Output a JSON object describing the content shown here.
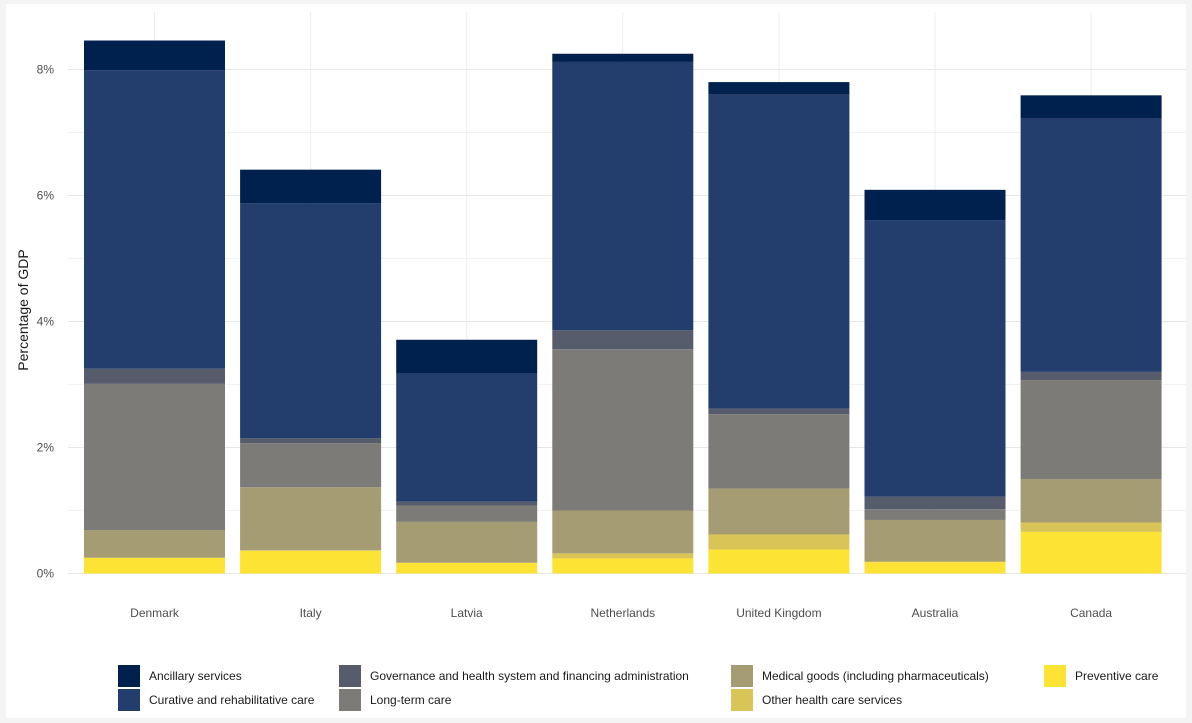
{
  "chart_data": {
    "type": "bar",
    "stacked": true,
    "title": "",
    "xlabel": "",
    "ylabel": "Percentage of GDP",
    "ylim": [
      0,
      8.5
    ],
    "y_ticks": [
      0,
      2,
      4,
      6,
      8
    ],
    "y_tick_labels": [
      "0%",
      "2%",
      "4%",
      "6%",
      "8%"
    ],
    "grid": true,
    "legend_position": "bottom",
    "categories": [
      "Denmark",
      "Italy",
      "Latvia",
      "Netherlands",
      "United Kingdom",
      "Australia",
      "Canada"
    ],
    "series": [
      {
        "name": "Preventive care",
        "color": "#FDE333",
        "values": [
          0.25,
          0.36,
          0.17,
          0.24,
          0.38,
          0.18,
          0.66
        ]
      },
      {
        "name": "Other health care services",
        "color": "#D9C557",
        "values": [
          0.0,
          0.01,
          0.0,
          0.08,
          0.24,
          0.01,
          0.15
        ]
      },
      {
        "name": "Medical goods (including pharmaceuticals)",
        "color": "#A59C74",
        "values": [
          0.44,
          1.0,
          0.65,
          0.68,
          0.73,
          0.66,
          0.69
        ]
      },
      {
        "name": "Long-term care",
        "color": "#7C7B78",
        "values": [
          2.32,
          0.7,
          0.26,
          2.56,
          1.18,
          0.17,
          1.57
        ]
      },
      {
        "name": "Governance and health system and financing administration",
        "color": "#575C6D",
        "values": [
          0.24,
          0.08,
          0.06,
          0.3,
          0.09,
          0.2,
          0.13
        ]
      },
      {
        "name": "Curative and rehabilitative care",
        "color": "#233E6C",
        "values": [
          4.74,
          3.73,
          2.03,
          4.26,
          4.98,
          4.39,
          4.02
        ]
      },
      {
        "name": "Ancillary services",
        "color": "#00204D",
        "values": [
          0.47,
          0.53,
          0.54,
          0.13,
          0.2,
          0.48,
          0.37
        ]
      }
    ],
    "legend": {
      "rows": [
        [
          "Ancillary services",
          "Governance and health system and financing administration",
          "Medical goods (including pharmaceuticals)",
          "Preventive care"
        ],
        [
          "Curative and rehabilitative care",
          "Long-term care",
          "Other health care services"
        ]
      ]
    }
  }
}
